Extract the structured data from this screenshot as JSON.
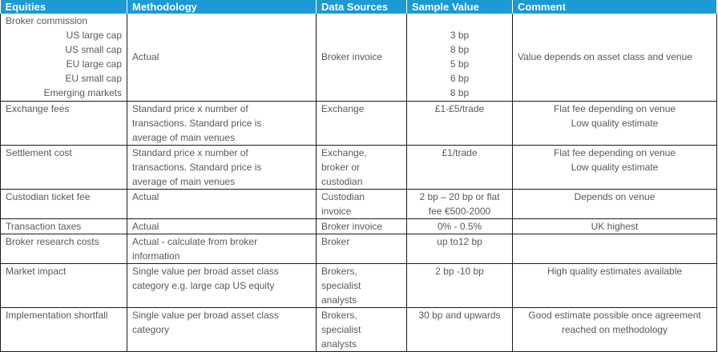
{
  "headers": [
    "Equities",
    "Methodology",
    "Data Sources",
    "Sample Value",
    "Comment"
  ],
  "broker": {
    "title": "Broker commission",
    "subs": [
      "US large cap",
      "US small cap",
      "EU large cap",
      "EU small cap",
      "Emerging markets"
    ],
    "methodology": "Actual",
    "source": "Broker invoice",
    "values": [
      "3 bp",
      "8 bp",
      "5 bp",
      "6 bp",
      "8 bp"
    ],
    "comment": "Value depends on asset class and venue"
  },
  "rows": [
    {
      "name": "Exchange fees",
      "methodology": [
        "Standard price x number of",
        "transactions. Standard price is",
        "average of main venues"
      ],
      "source": [
        "Exchange"
      ],
      "value": [
        "£1-£5/trade"
      ],
      "comment": [
        "Flat fee depending on venue",
        "Low quality estimate"
      ]
    },
    {
      "name": "Settlement cost",
      "methodology": [
        "Standard price x number of",
        "transactions. Standard price is",
        "average of main venues"
      ],
      "source": [
        "Exchange,",
        "broker or",
        "custodian"
      ],
      "value": [
        "£1/trade"
      ],
      "comment": [
        "Flat fee depending on venue",
        "Low quality estimate"
      ]
    },
    {
      "name": "Custodian ticket fee",
      "methodology": [
        "Actual"
      ],
      "source": [
        "Custodian",
        "invoice"
      ],
      "value": [
        "2 bp – 20 bp or flat",
        "fee €500-2000"
      ],
      "comment": [
        "Depends on venue"
      ]
    },
    {
      "name": "Transaction taxes",
      "methodology": [
        "Actual"
      ],
      "source": [
        "Broker invoice"
      ],
      "value": [
        "0% - 0.5%"
      ],
      "comment": [
        "UK highest"
      ]
    },
    {
      "name": "Broker research costs",
      "methodology": [
        "Actual - calculate from broker",
        "information"
      ],
      "source": [
        "Broker"
      ],
      "value": [
        "up to12 bp"
      ],
      "comment": []
    },
    {
      "name": "Market impact",
      "methodology": [
        "Single value per broad asset class",
        "category e.g. large cap US equity"
      ],
      "source": [
        "Brokers,",
        "specialist",
        "analysts"
      ],
      "value": [
        "2 bp -10 bp"
      ],
      "comment": [
        "High quality estimates available"
      ]
    },
    {
      "name": "Implementation shortfall",
      "methodology": [
        "Single value per broad asset class",
        "category"
      ],
      "source": [
        "Brokers,",
        "specialist",
        "analysts"
      ],
      "value": [
        "30 bp and upwards"
      ],
      "comment": [
        "Good estimate possible once agreement",
        "reached on methodology"
      ]
    }
  ]
}
